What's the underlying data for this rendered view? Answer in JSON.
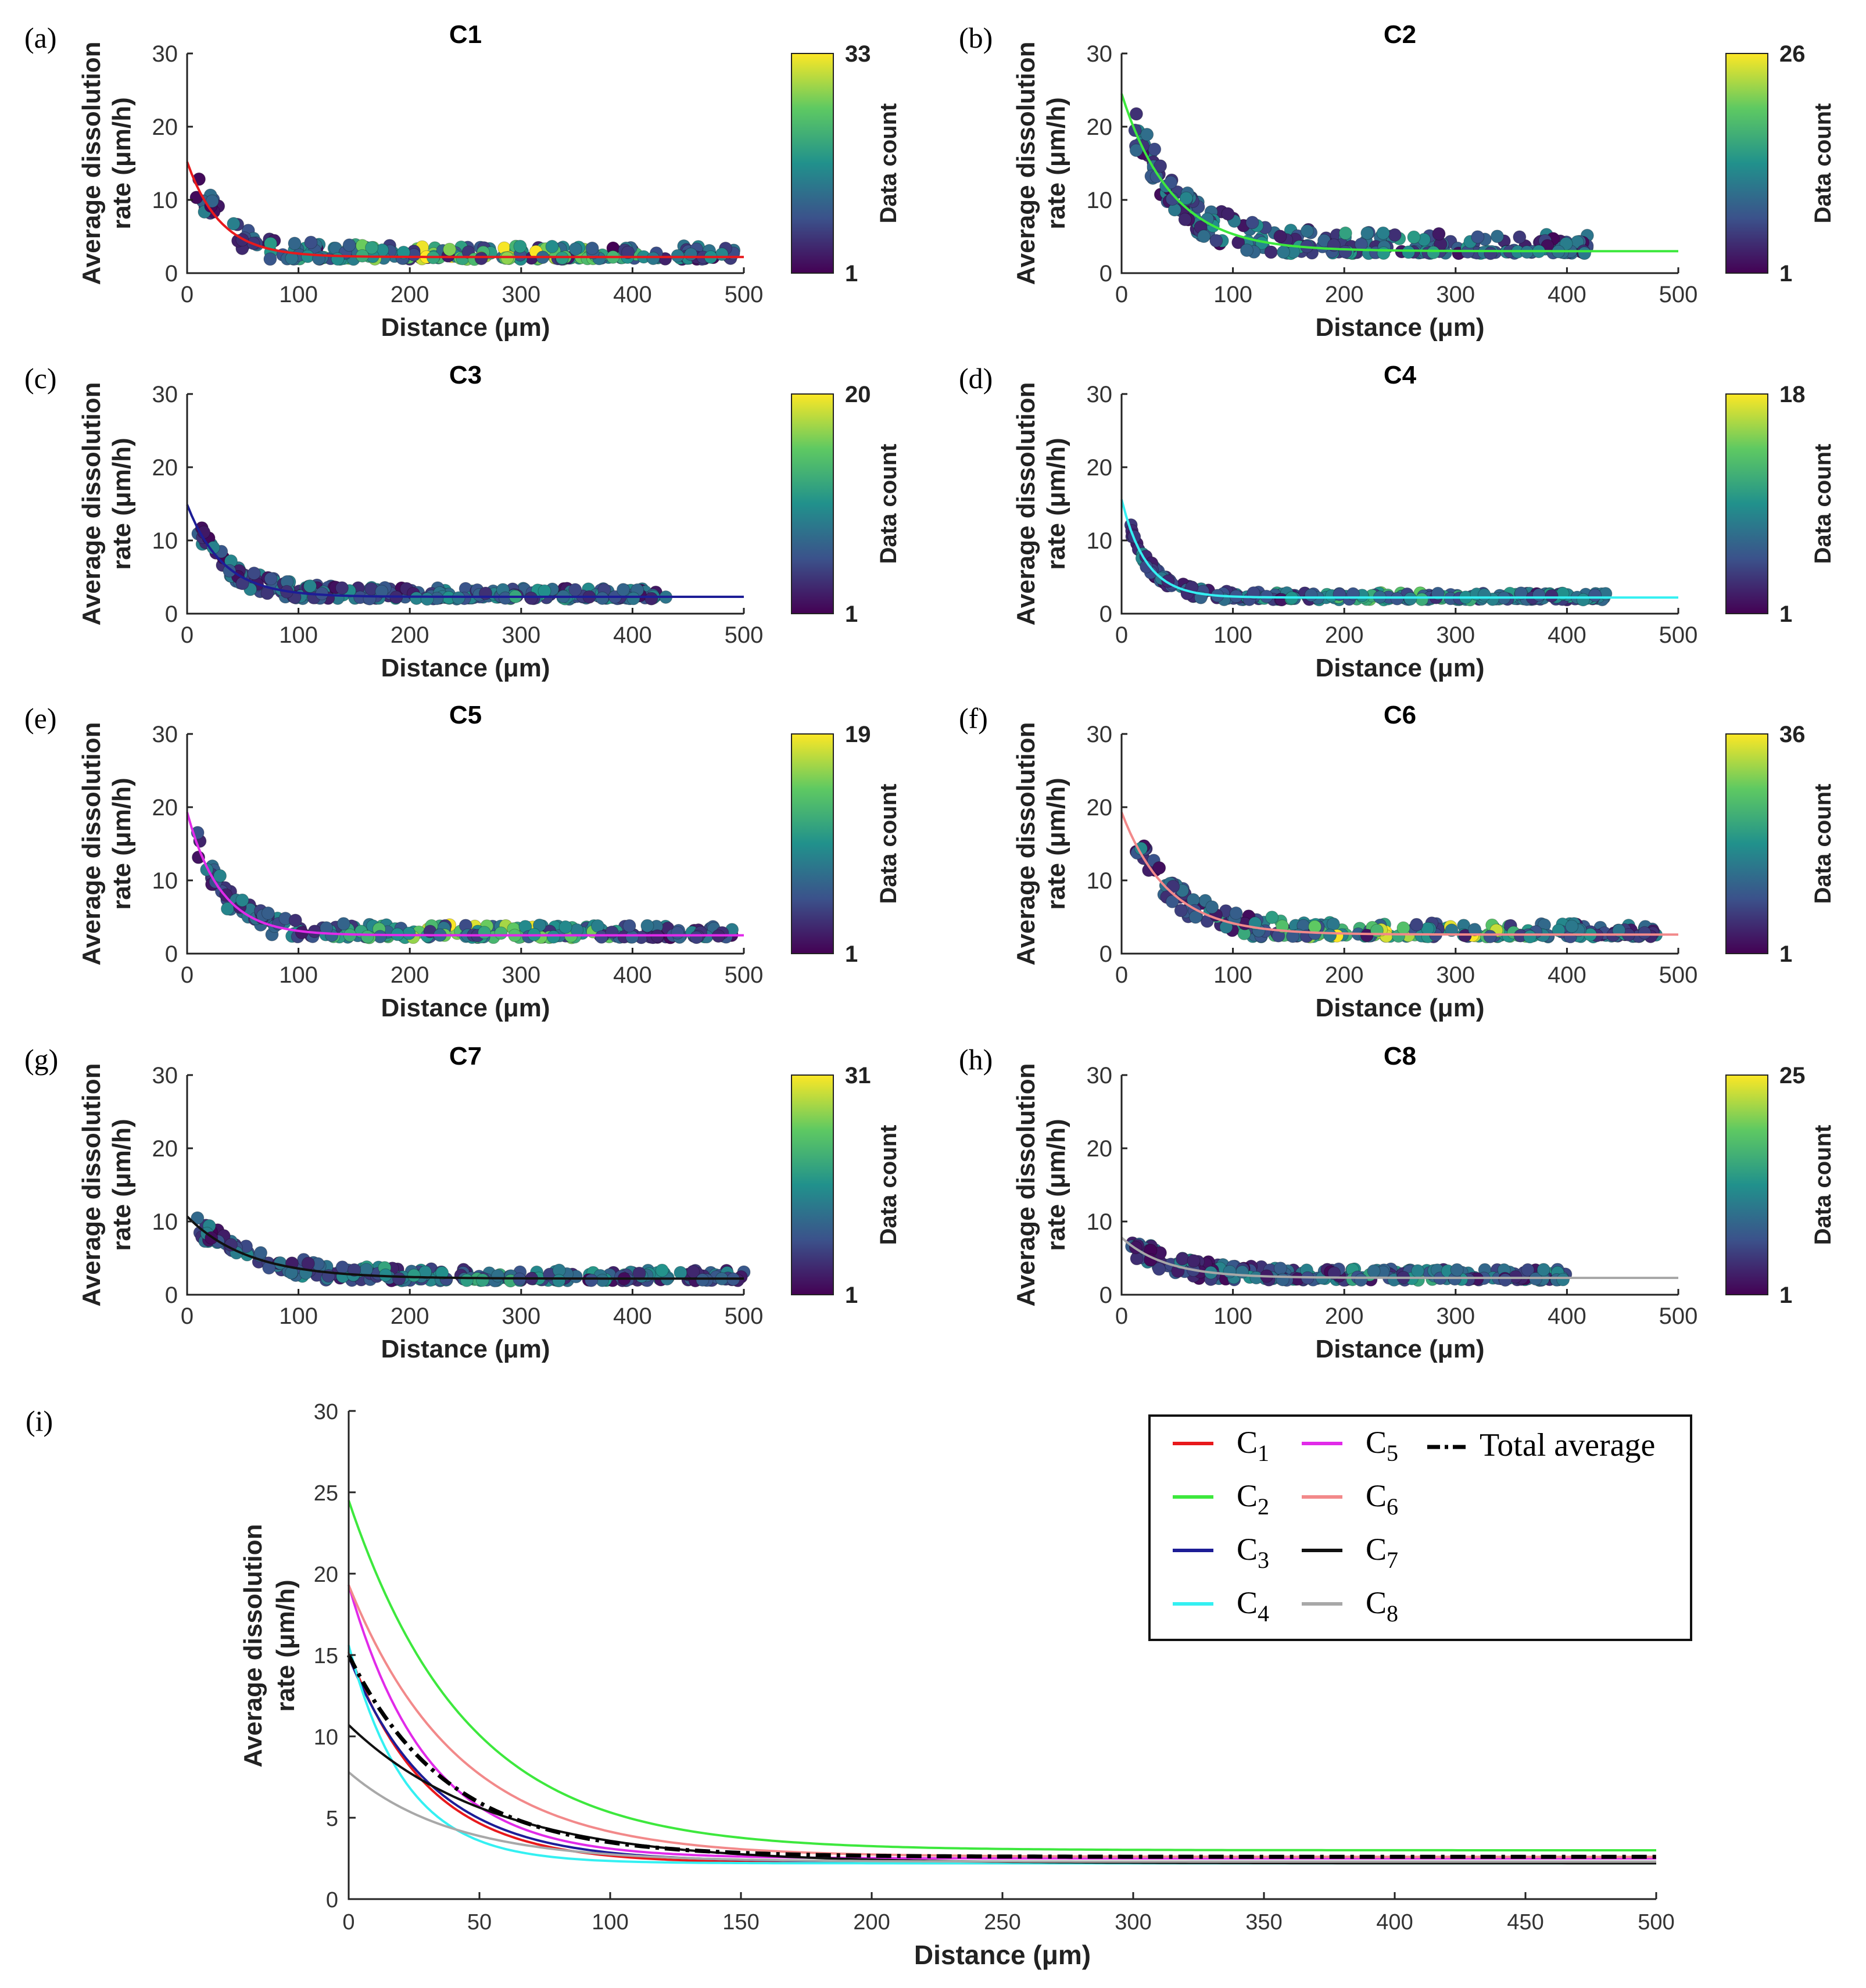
{
  "colors": {
    "C1": "#e8191c",
    "C2": "#3de83d",
    "C3": "#1d1d96",
    "C4": "#34f0f2",
    "C5": "#e12ae9",
    "C6": "#f2898a",
    "C7": "#111111",
    "C8": "#a8a8a8",
    "total": "#000000"
  },
  "viridis": [
    "#440154",
    "#3b528b",
    "#21918c",
    "#5ec962",
    "#fde725"
  ],
  "chart_data": [
    {
      "type": "scatter",
      "panel_label": "(a)",
      "title": "C1",
      "xlabel": "Distance (μm)",
      "ylabel": [
        "Average dissolution",
        "rate (μm/h)"
      ],
      "xlim": [
        0,
        500
      ],
      "ylim": [
        0,
        30
      ],
      "xticks": [
        0,
        100,
        200,
        300,
        400,
        500
      ],
      "yticks": [
        0,
        10,
        20,
        30
      ],
      "colorbar": {
        "label": "Data count",
        "min": 1,
        "max": 33
      },
      "fit": {
        "color_key": "C1",
        "a": 13,
        "k": 30,
        "c": 2.2
      },
      "scatter_extent": {
        "x": [
          8,
          500
        ],
        "spread": 2.0,
        "color_bias": 0.55
      }
    },
    {
      "type": "scatter",
      "panel_label": "(b)",
      "title": "C2",
      "xlabel": "Distance (μm)",
      "ylabel": [
        "Average dissolution",
        "rate (μm/h)"
      ],
      "xlim": [
        0,
        500
      ],
      "ylim": [
        0,
        30
      ],
      "xticks": [
        0,
        100,
        200,
        300,
        400,
        500
      ],
      "yticks": [
        0,
        10,
        20,
        30
      ],
      "colorbar": {
        "label": "Data count",
        "min": 1,
        "max": 26
      },
      "fit": {
        "color_key": "C2",
        "a": 21.5,
        "k": 45,
        "c": 3.0
      },
      "scatter_extent": {
        "x": [
          12,
          420
        ],
        "spread": 3.0,
        "color_bias": 0.15
      }
    },
    {
      "type": "scatter",
      "panel_label": "(c)",
      "title": "C3",
      "xlabel": "Distance (μm)",
      "ylabel": [
        "Average dissolution",
        "rate (μm/h)"
      ],
      "xlim": [
        0,
        500
      ],
      "ylim": [
        0,
        30
      ],
      "xticks": [
        0,
        100,
        200,
        300,
        400,
        500
      ],
      "yticks": [
        0,
        10,
        20,
        30
      ],
      "colorbar": {
        "label": "Data count",
        "min": 1,
        "max": 20
      },
      "fit": {
        "color_key": "C3",
        "a": 12.6,
        "k": 32,
        "c": 2.3
      },
      "scatter_extent": {
        "x": [
          8,
          430
        ],
        "spread": 1.5,
        "color_bias": 0.15
      }
    },
    {
      "type": "scatter",
      "panel_label": "(d)",
      "title": "C4",
      "xlabel": "Distance (μm)",
      "ylabel": [
        "Average dissolution",
        "rate (μm/h)"
      ],
      "xlim": [
        0,
        500
      ],
      "ylim": [
        0,
        30
      ],
      "xticks": [
        0,
        100,
        200,
        300,
        400,
        500
      ],
      "yticks": [
        0,
        10,
        20,
        30
      ],
      "colorbar": {
        "label": "Data count",
        "min": 1,
        "max": 18
      },
      "fit": {
        "color_key": "C4",
        "a": 13.4,
        "k": 22,
        "c": 2.2
      },
      "scatter_extent": {
        "x": [
          8,
          435
        ],
        "spread": 0.8,
        "color_bias": 0.3
      }
    },
    {
      "type": "scatter",
      "panel_label": "(e)",
      "title": "C5",
      "xlabel": "Distance (μm)",
      "ylabel": [
        "Average dissolution",
        "rate (μm/h)"
      ],
      "xlim": [
        0,
        500
      ],
      "ylim": [
        0,
        30
      ],
      "xticks": [
        0,
        100,
        200,
        300,
        400,
        500
      ],
      "yticks": [
        0,
        10,
        20,
        30
      ],
      "colorbar": {
        "label": "Data count",
        "min": 1,
        "max": 19
      },
      "fit": {
        "color_key": "C5",
        "a": 16.8,
        "k": 30,
        "c": 2.5
      },
      "scatter_extent": {
        "x": [
          8,
          490
        ],
        "spread": 1.8,
        "color_bias": 0.5
      }
    },
    {
      "type": "scatter",
      "panel_label": "(f)",
      "title": "C6",
      "xlabel": "Distance (μm)",
      "ylabel": [
        "Average dissolution",
        "rate (μm/h)"
      ],
      "xlim": [
        0,
        500
      ],
      "ylim": [
        0,
        30
      ],
      "xticks": [
        0,
        100,
        200,
        300,
        400,
        500
      ],
      "yticks": [
        0,
        10,
        20,
        30
      ],
      "colorbar": {
        "label": "Data count",
        "min": 1,
        "max": 36
      },
      "fit": {
        "color_key": "C6",
        "a": 16.7,
        "k": 42,
        "c": 2.6
      },
      "scatter_extent": {
        "x": [
          8,
          485
        ],
        "spread": 2.0,
        "color_bias": 0.5
      }
    },
    {
      "type": "scatter",
      "panel_label": "(g)",
      "title": "C7",
      "xlabel": "Distance (μm)",
      "ylabel": [
        "Average dissolution",
        "rate (μm/h)"
      ],
      "xlim": [
        0,
        500
      ],
      "ylim": [
        0,
        30
      ],
      "xticks": [
        0,
        100,
        200,
        300,
        400,
        500
      ],
      "yticks": [
        0,
        10,
        20,
        30
      ],
      "colorbar": {
        "label": "Data count",
        "min": 1,
        "max": 31
      },
      "fit": {
        "color_key": "C7",
        "a": 8.5,
        "k": 55,
        "c": 2.2
      },
      "scatter_extent": {
        "x": [
          8,
          500
        ],
        "spread": 1.5,
        "color_bias": 0.2
      }
    },
    {
      "type": "scatter",
      "panel_label": "(h)",
      "title": "C8",
      "xlabel": "Distance (μm)",
      "ylabel": [
        "Average dissolution",
        "rate (μm/h)"
      ],
      "xlim": [
        0,
        500
      ],
      "ylim": [
        0,
        30
      ],
      "xticks": [
        0,
        100,
        200,
        300,
        400,
        500
      ],
      "yticks": [
        0,
        10,
        20,
        30
      ],
      "colorbar": {
        "label": "Data count",
        "min": 1,
        "max": 25
      },
      "fit": {
        "color_key": "C8",
        "a": 5.5,
        "k": 40,
        "c": 2.3
      },
      "scatter_extent": {
        "x": [
          8,
          400
        ],
        "spread": 1.5,
        "color_bias": 0.15
      }
    },
    {
      "type": "line",
      "panel_label": "(i)",
      "xlabel": "Distance (μm)",
      "ylabel": [
        "Average dissolution",
        "rate (μm/h)"
      ],
      "xlim": [
        0,
        500
      ],
      "ylim": [
        0,
        30
      ],
      "xticks": [
        0,
        50,
        100,
        150,
        200,
        250,
        300,
        350,
        400,
        450,
        500
      ],
      "yticks": [
        0,
        5,
        10,
        15,
        20,
        25,
        30
      ],
      "series": [
        {
          "name": "C",
          "sub": "1",
          "color_key": "C1",
          "a": 13,
          "k": 30,
          "c": 2.2
        },
        {
          "name": "C",
          "sub": "2",
          "color_key": "C2",
          "a": 21.5,
          "k": 45,
          "c": 3.0
        },
        {
          "name": "C",
          "sub": "3",
          "color_key": "C3",
          "a": 12.6,
          "k": 32,
          "c": 2.3
        },
        {
          "name": "C",
          "sub": "4",
          "color_key": "C4",
          "a": 13.4,
          "k": 22,
          "c": 2.2
        },
        {
          "name": "C",
          "sub": "5",
          "color_key": "C5",
          "a": 16.8,
          "k": 30,
          "c": 2.5
        },
        {
          "name": "C",
          "sub": "6",
          "color_key": "C6",
          "a": 16.7,
          "k": 42,
          "c": 2.6
        },
        {
          "name": "C",
          "sub": "7",
          "color_key": "C7",
          "a": 8.5,
          "k": 55,
          "c": 2.2
        },
        {
          "name": "C",
          "sub": "8",
          "color_key": "C8",
          "a": 5.5,
          "k": 40,
          "c": 2.3
        },
        {
          "name": "Total average",
          "sub": "",
          "color_key": "total",
          "a": 12.4,
          "k": 38,
          "c": 2.6,
          "dashed": true
        }
      ],
      "legend": {
        "position": "top-right",
        "columns": [
          [
            "C1",
            "C2",
            "C3",
            "C4"
          ],
          [
            "C5",
            "C6",
            "C7",
            "C8"
          ],
          [
            "Total average"
          ]
        ]
      }
    }
  ]
}
